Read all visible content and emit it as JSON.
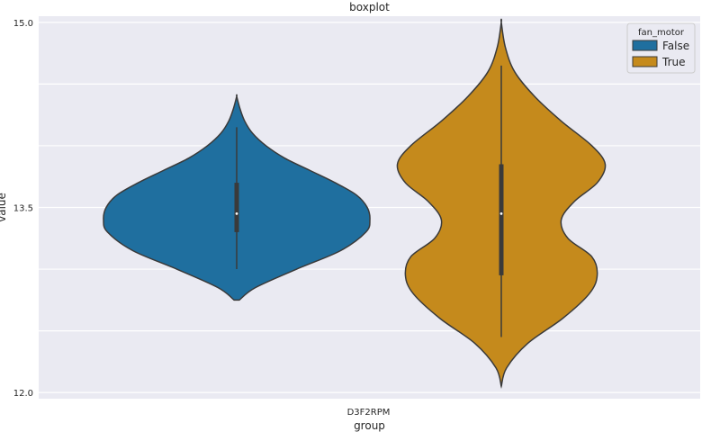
{
  "chart_data": {
    "type": "violin",
    "title": "boxplot",
    "xlabel": "group",
    "ylabel": "value",
    "categories": [
      "D3F2RPM"
    ],
    "ylim": [
      11.95,
      15.05
    ],
    "yticks": [
      "12.0",
      "13.5",
      "15.0"
    ],
    "grid": true,
    "legend": {
      "title": "fan_motor",
      "placement": "top-right",
      "entries": [
        "False",
        "True"
      ]
    },
    "series": [
      {
        "name": "False",
        "color": "#1f6f9f",
        "min": 12.75,
        "max": 14.4,
        "q1": 13.3,
        "median": 13.45,
        "q3": 13.7,
        "whisker_low": 13.0,
        "whisker_high": 14.15,
        "density": [
          [
            12.75,
            0.02
          ],
          [
            12.85,
            0.14
          ],
          [
            13.0,
            0.45
          ],
          [
            13.15,
            0.78
          ],
          [
            13.3,
            0.97
          ],
          [
            13.4,
            1.0
          ],
          [
            13.5,
            0.98
          ],
          [
            13.6,
            0.9
          ],
          [
            13.7,
            0.74
          ],
          [
            13.8,
            0.55
          ],
          [
            13.9,
            0.36
          ],
          [
            14.0,
            0.22
          ],
          [
            14.1,
            0.12
          ],
          [
            14.2,
            0.06
          ],
          [
            14.3,
            0.025
          ],
          [
            14.4,
            0.0
          ]
        ]
      },
      {
        "name": "True",
        "color": "#c58a1c",
        "min": 12.05,
        "max": 15.0,
        "q1": 12.95,
        "median": 13.45,
        "q3": 13.85,
        "whisker_low": 12.45,
        "whisker_high": 14.65,
        "density": [
          [
            12.05,
            0.0
          ],
          [
            12.2,
            0.04
          ],
          [
            12.4,
            0.2
          ],
          [
            12.6,
            0.46
          ],
          [
            12.8,
            0.66
          ],
          [
            12.95,
            0.72
          ],
          [
            13.1,
            0.68
          ],
          [
            13.25,
            0.5
          ],
          [
            13.4,
            0.45
          ],
          [
            13.55,
            0.55
          ],
          [
            13.7,
            0.72
          ],
          [
            13.85,
            0.78
          ],
          [
            14.0,
            0.68
          ],
          [
            14.2,
            0.45
          ],
          [
            14.4,
            0.25
          ],
          [
            14.6,
            0.1
          ],
          [
            14.8,
            0.03
          ],
          [
            15.0,
            0.0
          ]
        ]
      }
    ]
  }
}
